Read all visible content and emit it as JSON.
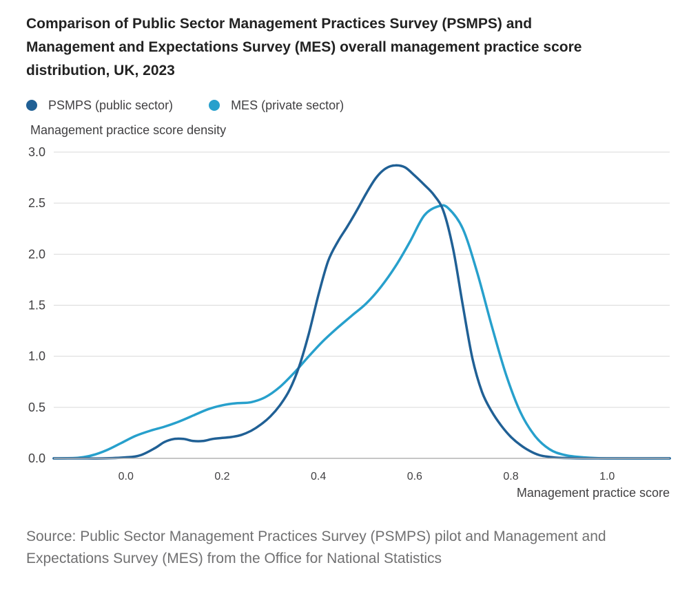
{
  "colors": {
    "psmps": "#206095",
    "mes": "#27a0cc",
    "grid": "#d9d9d9",
    "axis": "#b3b3b3",
    "text": "#414042"
  },
  "chart_data": {
    "type": "line",
    "title": "Comparison of Public Sector Management Practices Survey (PSMPS) and Management and Expectations Survey (MES) overall management practice score distribution, UK, 2023",
    "xlabel": "Management practice score",
    "ylabel": "Management practice score density",
    "xlim": [
      -0.15,
      1.13
    ],
    "ylim": [
      0,
      3.0
    ],
    "x_ticks": [
      0.0,
      0.2,
      0.4,
      0.6,
      0.8,
      1.0
    ],
    "x_tick_labels": [
      "0.0",
      "0.2",
      "0.4",
      "0.6",
      "0.8",
      "1.0"
    ],
    "y_ticks": [
      0.0,
      0.5,
      1.0,
      1.5,
      2.0,
      2.5,
      3.0
    ],
    "y_tick_labels": [
      "0.0",
      "0.5",
      "1.0",
      "1.5",
      "2.0",
      "2.5",
      "3.0"
    ],
    "grid": true,
    "legend_position": "top-left",
    "series": [
      {
        "name": "PSMPS (public sector)",
        "color": "#206095",
        "x": [
          -0.15,
          -0.1,
          -0.05,
          0.0,
          0.03,
          0.06,
          0.08,
          0.1,
          0.12,
          0.14,
          0.16,
          0.18,
          0.2,
          0.22,
          0.24,
          0.26,
          0.28,
          0.3,
          0.32,
          0.34,
          0.36,
          0.38,
          0.4,
          0.42,
          0.44,
          0.46,
          0.48,
          0.5,
          0.52,
          0.54,
          0.56,
          0.58,
          0.6,
          0.62,
          0.64,
          0.66,
          0.68,
          0.7,
          0.72,
          0.74,
          0.76,
          0.78,
          0.8,
          0.82,
          0.84,
          0.86,
          0.88,
          0.9,
          0.95,
          1.0,
          1.13
        ],
        "y": [
          0.0,
          0.0,
          0.0,
          0.01,
          0.03,
          0.1,
          0.16,
          0.19,
          0.19,
          0.17,
          0.17,
          0.19,
          0.2,
          0.21,
          0.23,
          0.27,
          0.33,
          0.41,
          0.52,
          0.67,
          0.9,
          1.22,
          1.6,
          1.93,
          2.12,
          2.27,
          2.43,
          2.6,
          2.75,
          2.84,
          2.87,
          2.85,
          2.77,
          2.68,
          2.58,
          2.42,
          2.05,
          1.5,
          0.98,
          0.65,
          0.46,
          0.32,
          0.21,
          0.13,
          0.07,
          0.03,
          0.015,
          0.005,
          0.0,
          0.0,
          0.0
        ]
      },
      {
        "name": "MES (private sector)",
        "color": "#27a0cc",
        "x": [
          -0.15,
          -0.1,
          -0.07,
          -0.04,
          -0.01,
          0.02,
          0.05,
          0.08,
          0.11,
          0.14,
          0.17,
          0.2,
          0.23,
          0.26,
          0.29,
          0.32,
          0.35,
          0.38,
          0.41,
          0.44,
          0.47,
          0.5,
          0.53,
          0.56,
          0.59,
          0.62,
          0.65,
          0.67,
          0.7,
          0.73,
          0.76,
          0.79,
          0.82,
          0.85,
          0.88,
          0.91,
          0.95,
          1.0,
          1.13
        ],
        "y": [
          0.0,
          0.005,
          0.03,
          0.08,
          0.15,
          0.22,
          0.27,
          0.31,
          0.36,
          0.42,
          0.48,
          0.52,
          0.54,
          0.55,
          0.6,
          0.7,
          0.84,
          1.0,
          1.15,
          1.28,
          1.4,
          1.52,
          1.68,
          1.88,
          2.12,
          2.38,
          2.47,
          2.45,
          2.25,
          1.82,
          1.3,
          0.82,
          0.45,
          0.22,
          0.09,
          0.035,
          0.01,
          0.0,
          0.0
        ]
      }
    ],
    "source": "Source: Public Sector Management Practices Survey (PSMPS) pilot and Management and Expectations Survey (MES) from the Office for National Statistics"
  }
}
